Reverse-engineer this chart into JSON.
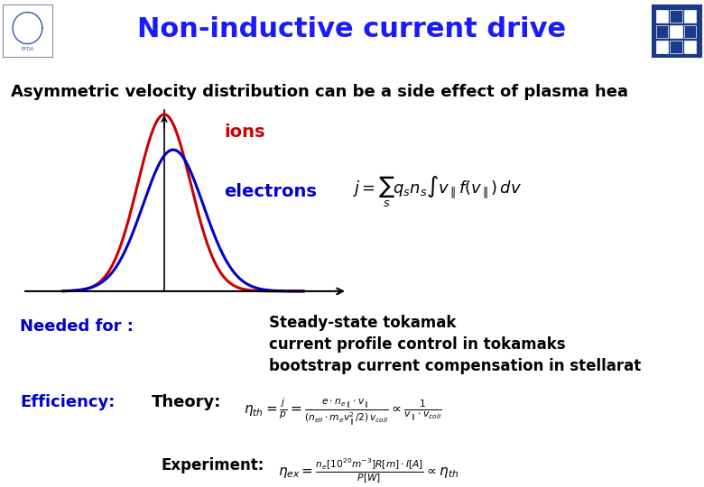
{
  "title": "Non-inductive current drive",
  "title_color": "#1a1aff",
  "title_fontsize": 22,
  "header_bg": "#c8d8f0",
  "subtitle": "Asymmetric velocity distribution can be a side effect of plasma hea",
  "ions_label": "ions",
  "electrons_label": "electrons",
  "ions_color": "#cc0000",
  "electrons_color": "#0000cc",
  "needed_label": "Needed for :",
  "needed_color": "#0000cc",
  "items": [
    "Steady-state tokamak",
    "current profile control in tokamaks",
    "bootstrap current compensation in stellarat"
  ],
  "efficiency_label": "Efficiency:",
  "efficiency_color": "#0000cc",
  "theory_label": "Theory:",
  "background_color": "#ffffff"
}
